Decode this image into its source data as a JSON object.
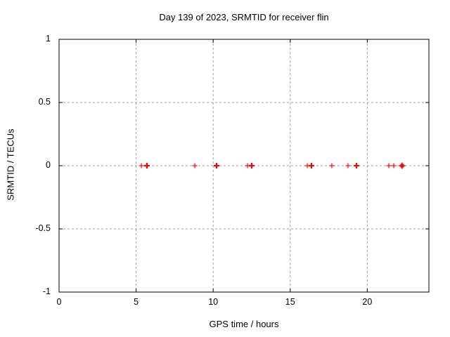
{
  "page": {
    "background": "#ffffff"
  },
  "chart_data": {
    "type": "scatter",
    "title": "Day 139 of 2023, SRMTID for receiver flin",
    "xlabel": "GPS time / hours",
    "ylabel": "SRMTID / TECUs",
    "xlim": [
      0,
      24
    ],
    "ylim": [
      -1,
      1
    ],
    "xticks": [
      0,
      5,
      10,
      15,
      20
    ],
    "xtick_labels": [
      "0",
      "5",
      "10",
      "15",
      "20"
    ],
    "yticks": [
      -1,
      -0.5,
      0,
      0.5,
      1
    ],
    "ytick_labels": [
      "-1",
      "-0.5",
      "0",
      "0.5",
      "1"
    ],
    "grid": true,
    "legend": "none",
    "marker": "plus",
    "colors": {
      "marker": "#ff0000",
      "grid": "#9c9c9c",
      "border": "#000000",
      "background": "#ffffff"
    },
    "series": [
      {
        "name": "SRMTID",
        "points": [
          {
            "x": 5.34,
            "y": 0,
            "weight": "normal"
          },
          {
            "x": 5.7,
            "y": 0,
            "weight": "bold"
          },
          {
            "x": 8.81,
            "y": 0,
            "weight": "normal"
          },
          {
            "x": 10.22,
            "y": 0,
            "weight": "bold"
          },
          {
            "x": 12.23,
            "y": 0,
            "weight": "normal"
          },
          {
            "x": 12.5,
            "y": 0,
            "weight": "bold"
          },
          {
            "x": 16.11,
            "y": 0,
            "weight": "normal"
          },
          {
            "x": 16.38,
            "y": 0,
            "weight": "bold"
          },
          {
            "x": 17.7,
            "y": 0,
            "weight": "normal"
          },
          {
            "x": 18.75,
            "y": 0,
            "weight": "normal"
          },
          {
            "x": 19.3,
            "y": 0,
            "weight": "bold"
          },
          {
            "x": 21.4,
            "y": 0,
            "weight": "normal"
          },
          {
            "x": 21.72,
            "y": 0,
            "weight": "normal"
          },
          {
            "x": 22.26,
            "y": 0,
            "weight": "heavy"
          }
        ]
      }
    ]
  }
}
